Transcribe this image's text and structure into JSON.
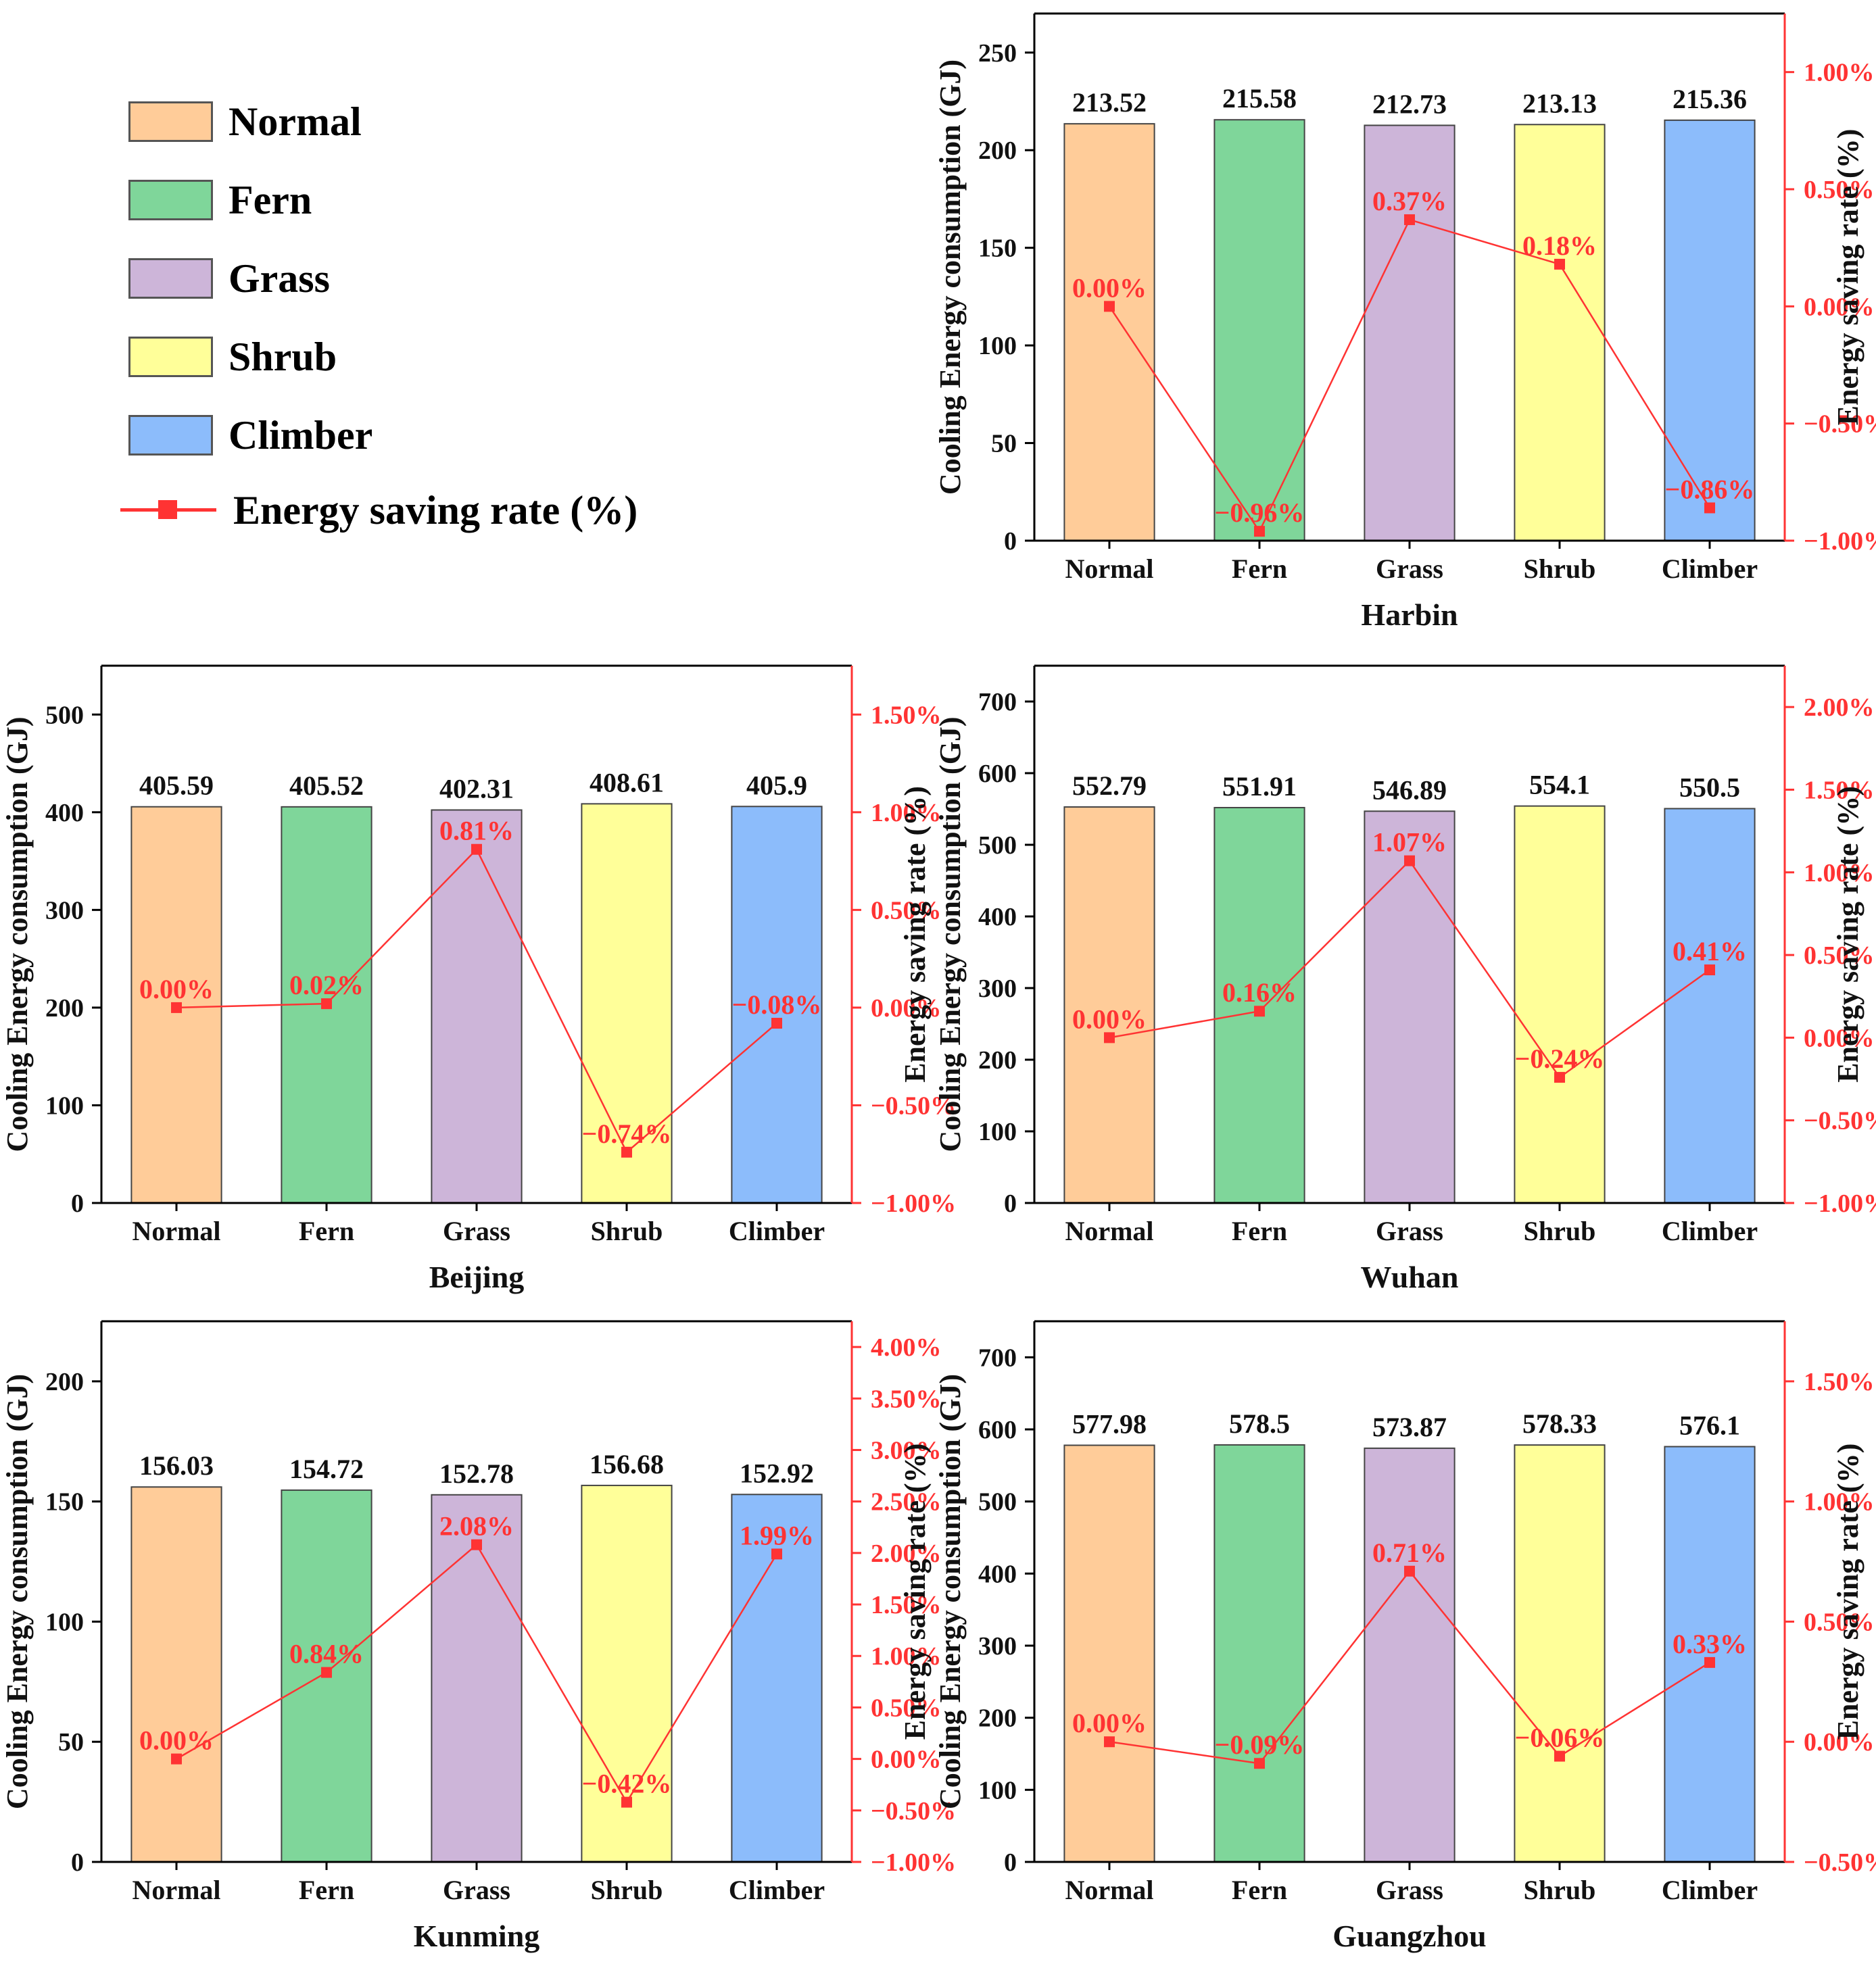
{
  "colors": {
    "normal": "#FFCC99",
    "fern": "#7FD69A",
    "grass": "#CDB5D9",
    "shrub": "#FFFF99",
    "climber": "#8CBCFB",
    "rate_line": "#FF3333",
    "bar_edge": "#555555"
  },
  "legend": {
    "items": [
      {
        "label": "Normal",
        "color_key": "normal"
      },
      {
        "label": "Fern",
        "color_key": "fern"
      },
      {
        "label": "Grass",
        "color_key": "grass"
      },
      {
        "label": "Shrub",
        "color_key": "shrub"
      },
      {
        "label": "Climber",
        "color_key": "climber"
      }
    ],
    "line_label": "Energy saving rate (%)"
  },
  "chart_data": [
    {
      "type": "bar",
      "title": "Harbin",
      "categories": [
        "Normal",
        "Fern",
        "Grass",
        "Shrub",
        "Climber"
      ],
      "value_labels": [
        "213.52",
        "215.58",
        "212.73",
        "213.13",
        "215.36"
      ],
      "ylabel": "Cooling Energy consumption (GJ)",
      "ylim": [
        0,
        270
      ],
      "yticks": [
        0,
        50,
        100,
        150,
        200,
        250
      ],
      "series": [
        {
          "name": "Cooling Energy consumption (GJ)",
          "values": [
            213.52,
            215.58,
            212.73,
            213.13,
            215.36
          ]
        },
        {
          "name": "Energy saving rate (%)",
          "axis": "right",
          "values": [
            0.0,
            -0.96,
            0.37,
            0.18,
            -0.86
          ],
          "labels": [
            "0.00%",
            "−0.96%",
            "0.37%",
            "0.18%",
            "−0.86%"
          ]
        }
      ],
      "y2label": "Energy saving rate (%)",
      "y2lim": [
        -1.0,
        1.25
      ],
      "y2ticks": [
        -1.0,
        -0.5,
        0.0,
        0.5,
        1.0
      ],
      "y2ticklabels": [
        "−1.00%",
        "−0.50%",
        "0.00%",
        "0.50%",
        "1.00%"
      ]
    },
    {
      "type": "bar",
      "title": "Beijing",
      "categories": [
        "Normal",
        "Fern",
        "Grass",
        "Shrub",
        "Climber"
      ],
      "value_labels": [
        "405.59",
        "405.52",
        "402.31",
        "408.61",
        "405.9"
      ],
      "ylabel": "Cooling Energy consumption (GJ)",
      "ylim": [
        0,
        550
      ],
      "yticks": [
        0,
        100,
        200,
        300,
        400,
        500
      ],
      "series": [
        {
          "name": "Cooling Energy consumption (GJ)",
          "values": [
            405.59,
            405.52,
            402.31,
            408.61,
            405.9
          ]
        },
        {
          "name": "Energy saving rate (%)",
          "axis": "right",
          "values": [
            0.0,
            0.02,
            0.81,
            -0.74,
            -0.08
          ],
          "labels": [
            "0.00%",
            "0.02%",
            "0.81%",
            "−0.74%",
            "−0.08%"
          ]
        }
      ],
      "y2label": "Energy saving rate (%)",
      "y2lim": [
        -1.0,
        1.75
      ],
      "y2ticks": [
        -1.0,
        -0.5,
        0.0,
        0.5,
        1.0,
        1.5
      ],
      "y2ticklabels": [
        "−1.00%",
        "−0.50%",
        "0.00%",
        "0.50%",
        "1.00%",
        "1.50%"
      ]
    },
    {
      "type": "bar",
      "title": "Wuhan",
      "categories": [
        "Normal",
        "Fern",
        "Grass",
        "Shrub",
        "Climber"
      ],
      "value_labels": [
        "552.79",
        "551.91",
        "546.89",
        "554.1",
        "550.5"
      ],
      "ylabel": "Cooling Energy consumption (GJ)",
      "ylim": [
        0,
        750
      ],
      "yticks": [
        0,
        100,
        200,
        300,
        400,
        500,
        600,
        700
      ],
      "series": [
        {
          "name": "Cooling Energy consumption (GJ)",
          "values": [
            552.79,
            551.91,
            546.89,
            554.1,
            550.5
          ]
        },
        {
          "name": "Energy saving rate (%)",
          "axis": "right",
          "values": [
            0.0,
            0.16,
            1.07,
            -0.24,
            0.41
          ],
          "labels": [
            "0.00%",
            "0.16%",
            "1.07%",
            "−0.24%",
            "0.41%"
          ]
        }
      ],
      "y2label": "Energy saving rate (%)",
      "y2lim": [
        -1.0,
        2.25
      ],
      "y2ticks": [
        -1.0,
        -0.5,
        0.0,
        0.5,
        1.0,
        1.5,
        2.0
      ],
      "y2ticklabels": [
        "−1.00%",
        "−0.50%",
        "0.00%",
        "0.50%",
        "1.00%",
        "1.50%",
        "2.00%"
      ]
    },
    {
      "type": "bar",
      "title": "Kunming",
      "categories": [
        "Normal",
        "Fern",
        "Grass",
        "Shrub",
        "Climber"
      ],
      "value_labels": [
        "156.03",
        "154.72",
        "152.78",
        "156.68",
        "152.92"
      ],
      "ylabel": "Cooling Energy consumption (GJ)",
      "ylim": [
        0,
        225
      ],
      "yticks": [
        0,
        50,
        100,
        150,
        200
      ],
      "series": [
        {
          "name": "Cooling Energy consumption (GJ)",
          "values": [
            156.03,
            154.72,
            152.78,
            156.68,
            152.92
          ]
        },
        {
          "name": "Energy saving rate (%)",
          "axis": "right",
          "values": [
            0.0,
            0.84,
            2.08,
            -0.42,
            1.99
          ],
          "labels": [
            "0.00%",
            "0.84%",
            "2.08%",
            "−0.42%",
            "1.99%"
          ]
        }
      ],
      "y2label": "Energy saving rate (%)",
      "y2lim": [
        -1.0,
        4.25
      ],
      "y2ticks": [
        -1.0,
        -0.5,
        0.0,
        0.5,
        1.0,
        1.5,
        2.0,
        2.5,
        3.0,
        3.5,
        4.0
      ],
      "y2ticklabels": [
        "−1.00%",
        "−0.50%",
        "0.00%",
        "0.50%",
        "1.00%",
        "1.50%",
        "2.00%",
        "2.50%",
        "3.00%",
        "3.50%",
        "4.00%"
      ]
    },
    {
      "type": "bar",
      "title": "Guangzhou",
      "categories": [
        "Normal",
        "Fern",
        "Grass",
        "Shrub",
        "Climber"
      ],
      "value_labels": [
        "577.98",
        "578.5",
        "573.87",
        "578.33",
        "576.1"
      ],
      "ylabel": "Cooling Energy consumption (GJ)",
      "ylim": [
        0,
        750
      ],
      "yticks": [
        0,
        100,
        200,
        300,
        400,
        500,
        600,
        700
      ],
      "series": [
        {
          "name": "Cooling Energy consumption (GJ)",
          "values": [
            577.98,
            578.5,
            573.87,
            578.33,
            576.1
          ]
        },
        {
          "name": "Energy saving rate (%)",
          "axis": "right",
          "values": [
            0.0,
            -0.09,
            0.71,
            -0.06,
            0.33
          ],
          "labels": [
            "0.00%",
            "−0.09%",
            "0.71%",
            "−0.06%",
            "0.33%"
          ]
        }
      ],
      "y2label": "Energy saving rate (%)",
      "y2lim": [
        -0.5,
        1.75
      ],
      "y2ticks": [
        -0.5,
        0.0,
        0.5,
        1.0,
        1.5
      ],
      "y2ticklabels": [
        "−0.50%",
        "0.00%",
        "0.50%",
        "1.00%",
        "1.50%"
      ]
    }
  ]
}
